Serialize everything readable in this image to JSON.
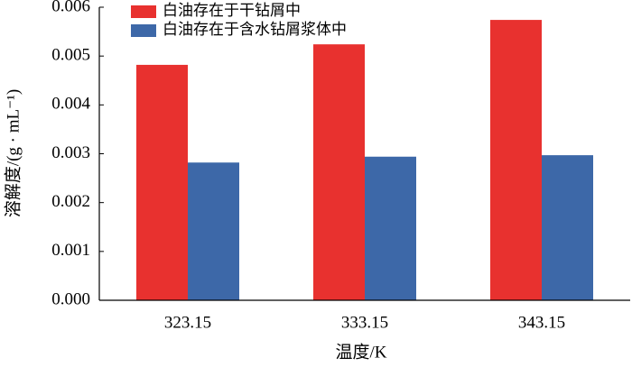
{
  "chart_data": {
    "type": "bar",
    "x_label": "温度/K",
    "y_label": "溶解度/(g · mL⁻¹)",
    "categories": [
      "323.15",
      "333.15",
      "343.15"
    ],
    "series": [
      {
        "name": "白油存在于干钻屑中",
        "color": "#e8312f",
        "values": [
          0.00482,
          0.00524,
          0.00574
        ]
      },
      {
        "name": "白油存在于含水钻屑浆体中",
        "color": "#3d68a8",
        "values": [
          0.00282,
          0.00294,
          0.00297
        ]
      }
    ],
    "ylim": [
      0,
      0.006
    ],
    "yticks": [
      {
        "value": 0,
        "label": "0.000"
      },
      {
        "value": 0.001,
        "label": "0.001"
      },
      {
        "value": 0.002,
        "label": "0.002"
      },
      {
        "value": 0.003,
        "label": "0.003"
      },
      {
        "value": 0.004,
        "label": "0.004"
      },
      {
        "value": 0.005,
        "label": "0.005"
      },
      {
        "value": 0.006,
        "label": "0.006"
      }
    ],
    "legend": "upper-left"
  }
}
